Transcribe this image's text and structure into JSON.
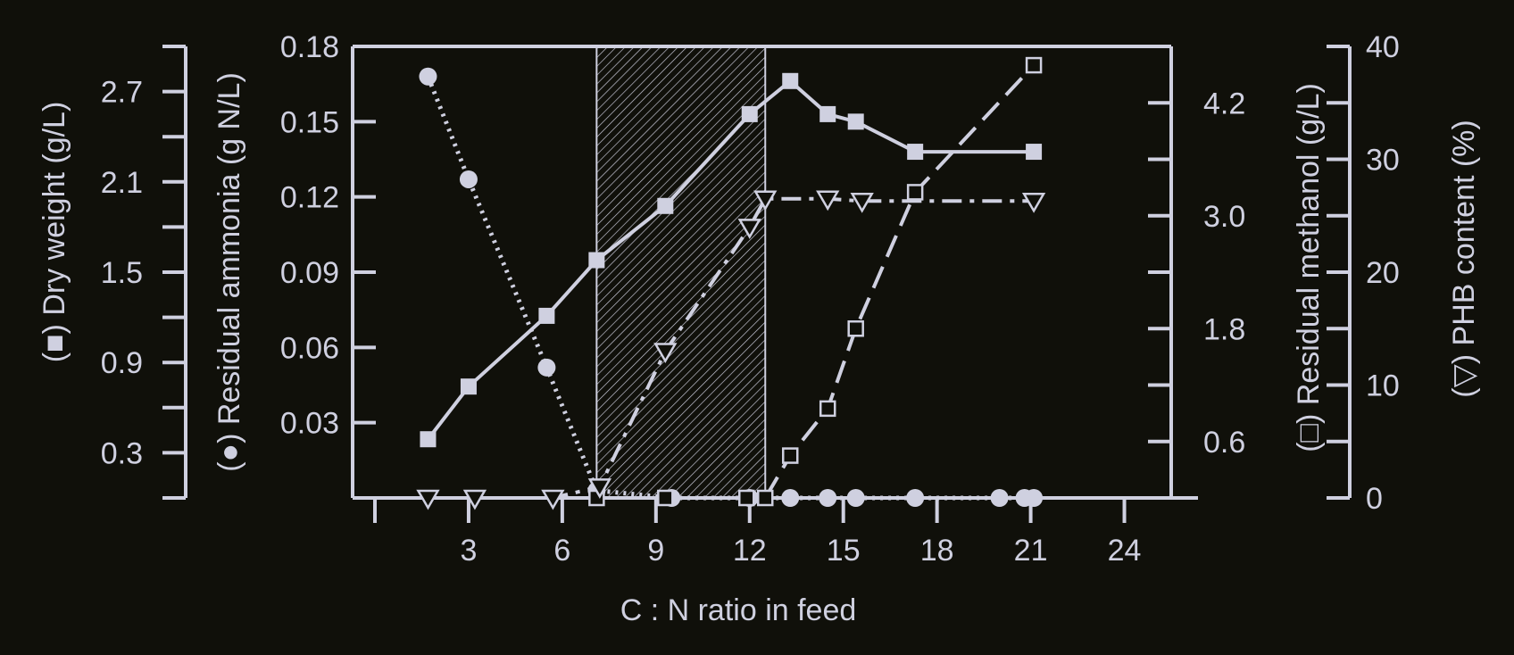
{
  "colors": {
    "background": "#10100a",
    "ink": "#cfd0e0"
  },
  "chart_data": {
    "type": "line",
    "xlabel": "C : N ratio in feed",
    "x_ticks": [
      "3",
      "6",
      "9",
      "12",
      "15",
      "18",
      "21",
      "24"
    ],
    "xlim": [
      0,
      25.5
    ],
    "shaded_region": {
      "x_from": 7.1,
      "x_to": 12.5,
      "pattern": "diagonal-hatch"
    },
    "axes": {
      "dry_weight": {
        "label": "(■) Dry weight (g/L)",
        "ticks": [
          "0.3",
          "0.9",
          "1.5",
          "2.1",
          "2.7"
        ],
        "range": [
          0,
          3.0
        ]
      },
      "ammonia": {
        "label": "(●) Residual ammonia (g N/L)",
        "ticks": [
          "0.03",
          "0.06",
          "0.09",
          "0.12",
          "0.15",
          "0.18"
        ],
        "range": [
          0,
          0.18
        ]
      },
      "methanol": {
        "label": "(□) Residual methanol (g/L)",
        "ticks": [
          "0.6",
          "1.8",
          "3.0",
          "4.2"
        ],
        "range": [
          0,
          4.8
        ]
      },
      "phb": {
        "label": "(▽) PHB content (%)",
        "ticks": [
          "0",
          "10",
          "20",
          "30",
          "40"
        ],
        "range": [
          0,
          40
        ]
      }
    },
    "series": [
      {
        "axis": "dry_weight",
        "marker": "filled-square",
        "line": "solid",
        "x": [
          1.7,
          3.0,
          5.5,
          7.1,
          9.3,
          12.0,
          13.3,
          14.5,
          15.4,
          17.3,
          21.1
        ],
        "y": [
          0.39,
          0.74,
          1.21,
          1.58,
          1.94,
          2.55,
          2.77,
          2.55,
          2.5,
          2.3,
          2.3
        ]
      },
      {
        "axis": "ammonia",
        "marker": "filled-circle",
        "line": "dotted",
        "x": [
          1.7,
          3.0,
          5.5,
          7.1,
          9.5,
          12.0,
          13.3,
          14.5,
          15.4,
          17.3,
          20.0,
          20.8,
          21.1
        ],
        "y": [
          0.168,
          0.127,
          0.052,
          0.003,
          0.0,
          0.0,
          0.0,
          0.0,
          0.0,
          0.0,
          0.0,
          0.0,
          0.0
        ]
      },
      {
        "axis": "methanol",
        "marker": "open-square",
        "line": "dashed",
        "x": [
          7.1,
          9.3,
          11.9,
          12.5,
          13.3,
          14.5,
          15.4,
          17.3,
          21.1
        ],
        "y": [
          0.0,
          0.0,
          0.0,
          0.0,
          0.45,
          0.95,
          1.8,
          3.25,
          4.6
        ]
      },
      {
        "axis": "phb",
        "marker": "open-triangle-down",
        "line": "dash-dot",
        "x": [
          1.7,
          3.2,
          5.7,
          7.2,
          9.3,
          12.0,
          12.5,
          14.5,
          15.6,
          21.1
        ],
        "y": [
          0.0,
          0.0,
          0.0,
          1.0,
          13.0,
          24.0,
          26.5,
          26.5,
          26.3,
          26.3
        ]
      }
    ]
  }
}
